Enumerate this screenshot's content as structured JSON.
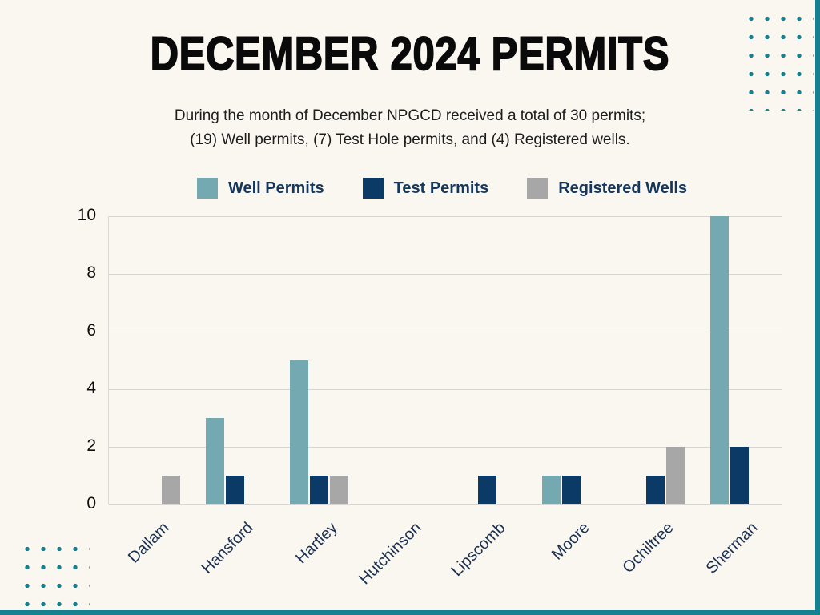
{
  "page": {
    "title": "DECEMBER 2024 PERMITS",
    "subtitle_line1": "During the month of December NPGCD received a total of 30 permits;",
    "subtitle_line2": "(19) Well permits, (7) Test Hole permits, and (4) Registered wells."
  },
  "colors": {
    "well": "#74a9b2",
    "test": "#0c3a67",
    "registered": "#a7a7a7",
    "accent": "#15808f",
    "background": "#faf7f1",
    "gridline": "#d7d5d1"
  },
  "chart_data": {
    "type": "bar",
    "title": "December 2024 Permits",
    "categories": [
      "Dallam",
      "Hansford",
      "Hartley",
      "Hutchinson",
      "Lipscomb",
      "Moore",
      "Ochiltree",
      "Sherman"
    ],
    "series": [
      {
        "name": "Well Permits",
        "color_key": "well",
        "values": [
          0,
          3,
          5,
          0,
          0,
          1,
          0,
          10
        ]
      },
      {
        "name": "Test Permits",
        "color_key": "test",
        "values": [
          0,
          1,
          1,
          0,
          1,
          1,
          1,
          2
        ]
      },
      {
        "name": "Registered Wells",
        "color_key": "registered",
        "values": [
          1,
          0,
          1,
          0,
          0,
          0,
          2,
          0
        ]
      }
    ],
    "y_ticks": [
      0,
      2,
      4,
      6,
      8,
      10
    ],
    "ylim": [
      0,
      10
    ],
    "grid": true,
    "legend_position": "top"
  }
}
